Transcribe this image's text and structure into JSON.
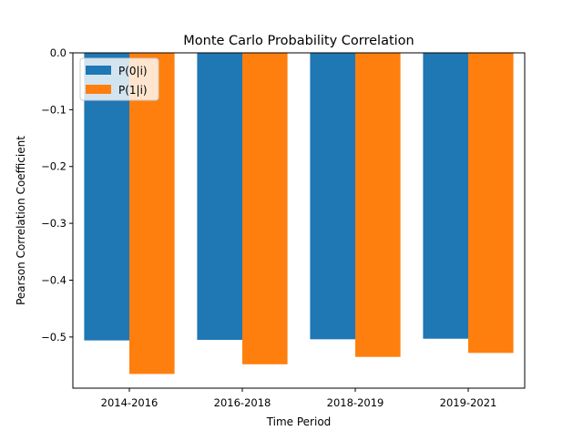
{
  "chart_data": {
    "type": "bar",
    "title": "Monte Carlo Probability Correlation",
    "xlabel": "Time Period",
    "ylabel": "Pearson Correlation Coefficient",
    "categories": [
      "2014-2016",
      "2016-2018",
      "2018-2019",
      "2019-2021"
    ],
    "series": [
      {
        "name": "P(0|i)",
        "color": "#1f77b4",
        "values": [
          -0.506,
          -0.505,
          -0.504,
          -0.503
        ]
      },
      {
        "name": "P(1|i)",
        "color": "#ff7f0e",
        "values": [
          -0.565,
          -0.548,
          -0.535,
          -0.528
        ]
      }
    ],
    "ylim": [
      -0.59,
      0.0
    ],
    "yticks": [
      0.0,
      -0.1,
      -0.2,
      -0.3,
      -0.4,
      -0.5
    ],
    "ytick_labels": [
      "0.0",
      "−0.1",
      "−0.2",
      "−0.3",
      "−0.4",
      "−0.5"
    ],
    "grid": false,
    "legend_position": "top-left"
  }
}
